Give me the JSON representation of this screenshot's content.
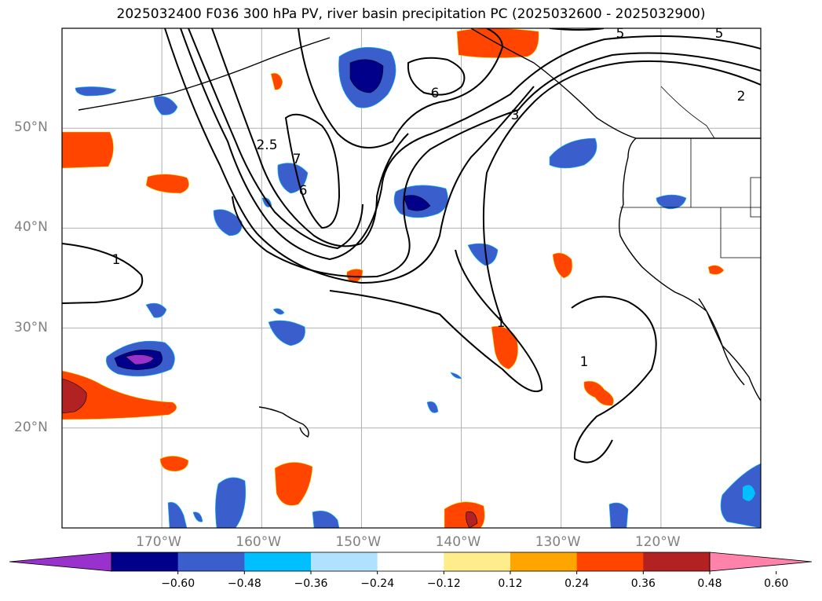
{
  "title": "2025032400 F036 300 hPa PV, river basin precipitation PC (2025032600 - 2025032900)",
  "map": {
    "lon_range": [
      -180,
      -110
    ],
    "lat_range": [
      10,
      60
    ],
    "lat_labels": [
      "50°N",
      "40°N",
      "30°N",
      "20°N"
    ],
    "lat_values": [
      50,
      40,
      30,
      20
    ],
    "lon_labels": [
      "170°W",
      "160°W",
      "150°W",
      "140°W",
      "130°W",
      "120°W"
    ],
    "lon_values": [
      -170,
      -160,
      -150,
      -140,
      -130,
      -120
    ],
    "gridlines": true,
    "pv_contour_labels": [
      "5",
      "5",
      "2",
      "6",
      "3",
      "2.5",
      "7",
      "6",
      "1",
      "1",
      "1"
    ],
    "pv_contour_color": "#000000"
  },
  "colorbar": {
    "ticks": [
      "−0.60",
      "−0.48",
      "−0.36",
      "−0.24",
      "−0.12",
      "0.12",
      "0.24",
      "0.36",
      "0.48",
      "0.60"
    ],
    "colors": [
      "#9932cc",
      "#00008b",
      "#3a5fcd",
      "#00bfff",
      "#b0e2ff",
      "#ffffff",
      "#ffec8b",
      "#ffa500",
      "#ff4500",
      "#b22222",
      "#ff82ab"
    ],
    "extend": "both"
  }
}
